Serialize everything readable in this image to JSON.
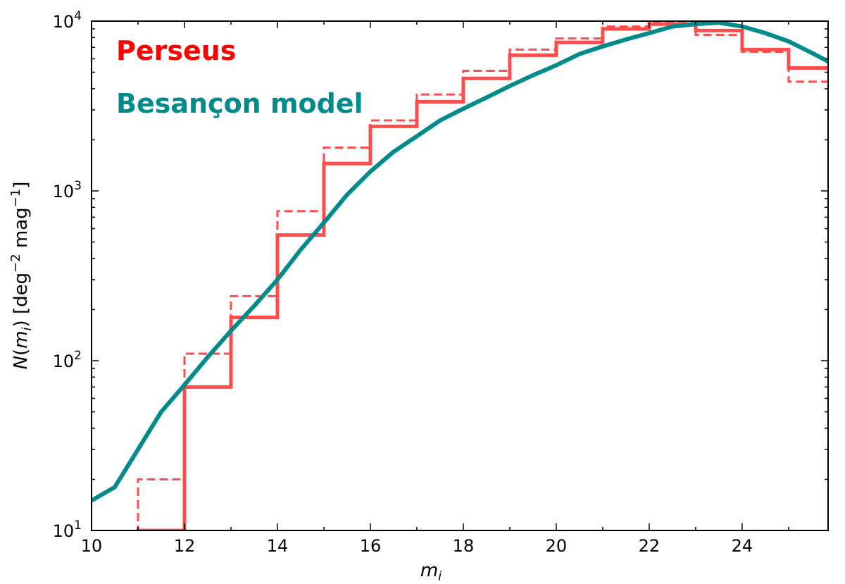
{
  "chart_data": {
    "type": "line",
    "title": "",
    "xlabel": "m_i",
    "ylabel": "N(m_i) [deg^-2 mag^-1]",
    "xlim": [
      10,
      25.85
    ],
    "ylim": [
      10,
      10000
    ],
    "yscale": "log",
    "grid": false,
    "legend_position": "top-left",
    "xticks": [
      10,
      12,
      14,
      16,
      18,
      20,
      22,
      24
    ],
    "yticks": [
      {
        "value": 10,
        "base": "10",
        "exp": "1"
      },
      {
        "value": 100,
        "base": "10",
        "exp": "2"
      },
      {
        "value": 1000,
        "base": "10",
        "exp": "3"
      },
      {
        "value": 10000,
        "base": "10",
        "exp": "4"
      }
    ],
    "series": [
      {
        "name": "Perseus",
        "style": "step-solid",
        "color": "#ff4c4c",
        "bin_edges": [
          11,
          12,
          13,
          14,
          15,
          16,
          17,
          18,
          19,
          20,
          21,
          22,
          23,
          24,
          25,
          26
        ],
        "values": [
          10,
          70,
          180,
          550,
          1450,
          2400,
          3350,
          4600,
          6300,
          7500,
          9000,
          9600,
          8800,
          6800,
          5300
        ]
      },
      {
        "name": "",
        "style": "step-dashed",
        "color": "#ff4c4c",
        "bin_edges": [
          11,
          12,
          13,
          14,
          15,
          16,
          17,
          18,
          19,
          20,
          21,
          22,
          23,
          24,
          25,
          26
        ],
        "values": [
          20,
          110,
          240,
          760,
          1800,
          2600,
          3700,
          5100,
          6800,
          7900,
          9300,
          9900,
          8300,
          6600,
          4400
        ]
      },
      {
        "name": "Besançon model",
        "style": "line",
        "color": "#008b8b",
        "x": [
          10,
          10.5,
          11.5,
          12,
          12.5,
          13,
          13.5,
          14,
          14.5,
          15,
          15.5,
          16,
          16.5,
          17,
          17.5,
          18,
          18.5,
          19,
          19.5,
          20,
          20.5,
          21,
          21.5,
          22,
          22.5,
          23,
          23.5,
          24,
          24.5,
          25,
          25.5,
          26
        ],
        "y": [
          15,
          18,
          50,
          72,
          105,
          150,
          210,
          300,
          450,
          650,
          950,
          1300,
          1700,
          2100,
          2600,
          3050,
          3550,
          4150,
          4800,
          5500,
          6400,
          7100,
          7800,
          8500,
          9300,
          9600,
          9800,
          9300,
          8500,
          7600,
          6500,
          5500
        ]
      }
    ]
  }
}
